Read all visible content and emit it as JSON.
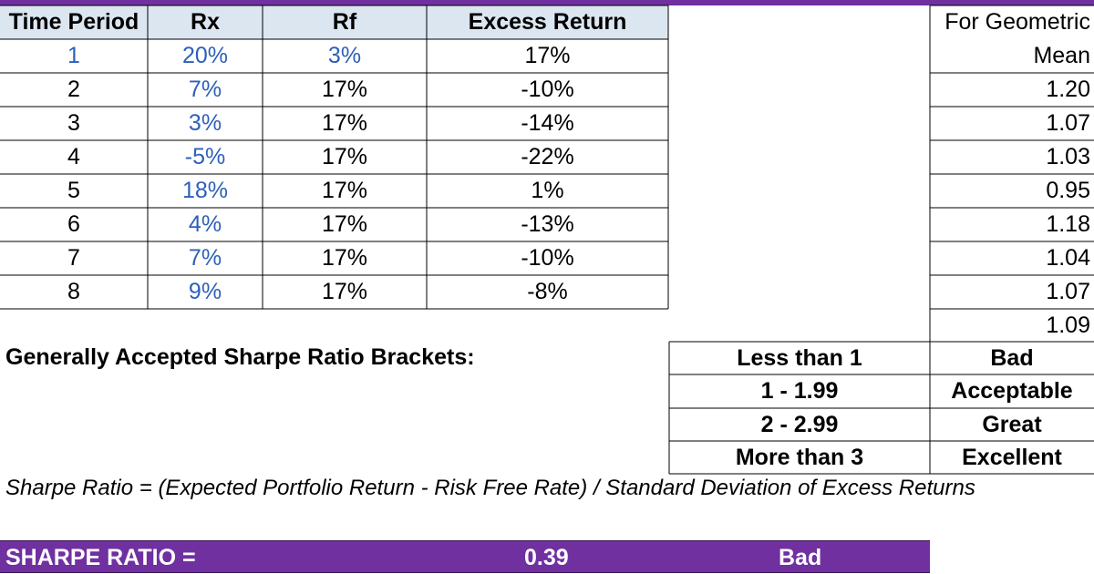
{
  "table": {
    "headers": [
      "Time Period",
      "Rx",
      "Rf",
      "Excess Return"
    ],
    "rows": [
      {
        "period": "1",
        "rx": "20%",
        "rf": "3%",
        "excess": "17%"
      },
      {
        "period": "2",
        "rx": "7%",
        "rf": "17%",
        "excess": "-10%"
      },
      {
        "period": "3",
        "rx": "3%",
        "rf": "17%",
        "excess": "-14%"
      },
      {
        "period": "4",
        "rx": "-5%",
        "rf": "17%",
        "excess": "-22%"
      },
      {
        "period": "5",
        "rx": "18%",
        "rf": "17%",
        "excess": "1%"
      },
      {
        "period": "6",
        "rx": "4%",
        "rf": "17%",
        "excess": "-13%"
      },
      {
        "period": "7",
        "rx": "7%",
        "rf": "17%",
        "excess": "-10%"
      },
      {
        "period": "8",
        "rx": "9%",
        "rf": "17%",
        "excess": "-8%"
      }
    ]
  },
  "geometric": {
    "header_line1": "For Geometric",
    "header_line2": "Mean",
    "values": [
      "1.20",
      "1.07",
      "1.03",
      "0.95",
      "1.18",
      "1.04",
      "1.07",
      "1.09"
    ]
  },
  "brackets": {
    "title": "Generally Accepted Sharpe Ratio Brackets:",
    "rows": [
      {
        "range": "Less than 1",
        "rating": "Bad"
      },
      {
        "range": "1 - 1.99",
        "rating": "Acceptable"
      },
      {
        "range": "2 - 2.99",
        "rating": "Great"
      },
      {
        "range": "More than 3",
        "rating": "Excellent"
      }
    ]
  },
  "formula": "Sharpe Ratio = (Expected Portfolio Return - Risk Free Rate) / Standard Deviation of Excess Returns",
  "result": {
    "label": "SHARPE RATIO =",
    "value": "0.39",
    "rating": "Bad"
  },
  "colors": {
    "header_fill": "#dce6f1",
    "input_text": "#2e5fb8",
    "accent_purple": "#7030a0"
  }
}
